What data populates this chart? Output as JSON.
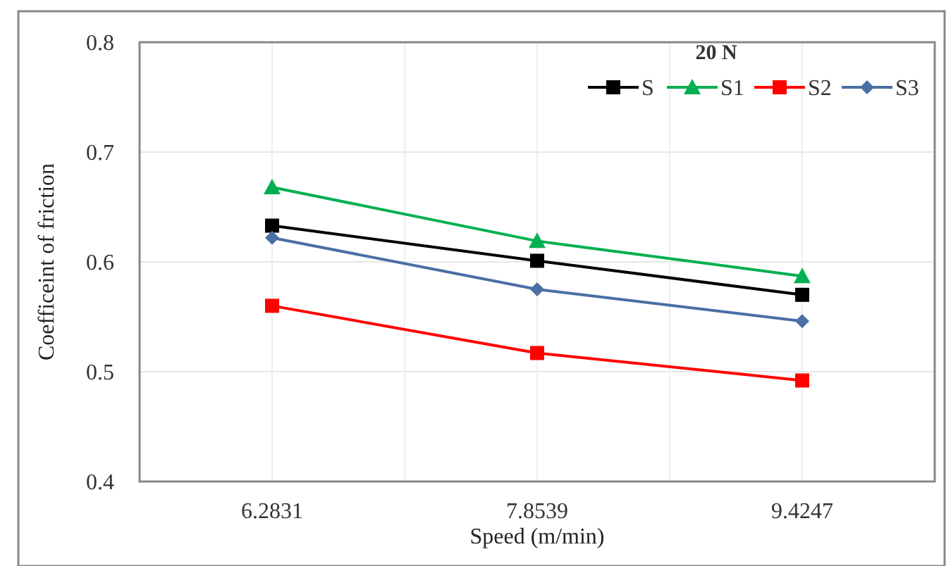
{
  "chart_data": {
    "type": "line",
    "xlabel": "Speed (m/min)",
    "ylabel": "Coefficeint of friction",
    "legend_title": "20 N",
    "categories": [
      "6.2831",
      "7.8539",
      "9.4247"
    ],
    "series": [
      {
        "name": "S",
        "color": "#000000",
        "marker": "square",
        "values": [
          0.633,
          0.601,
          0.57
        ]
      },
      {
        "name": "S1",
        "color": "#00b050",
        "marker": "triangle",
        "values": [
          0.668,
          0.619,
          0.587
        ]
      },
      {
        "name": "S2",
        "color": "#ff0000",
        "marker": "square",
        "values": [
          0.56,
          0.517,
          0.492
        ]
      },
      {
        "name": "S3",
        "color": "#4a6fa5",
        "marker": "diamond",
        "values": [
          0.622,
          0.575,
          0.546
        ]
      }
    ],
    "ylim": [
      0.4,
      0.8
    ],
    "yticks": [
      {
        "value": 0.4,
        "label": "0.4"
      },
      {
        "value": 0.5,
        "label": "0.5"
      },
      {
        "value": 0.6,
        "label": "0.6"
      },
      {
        "value": 0.7,
        "label": "0.7"
      },
      {
        "value": 0.8,
        "label": "0.8"
      }
    ],
    "grid": true,
    "legend": "top right"
  }
}
